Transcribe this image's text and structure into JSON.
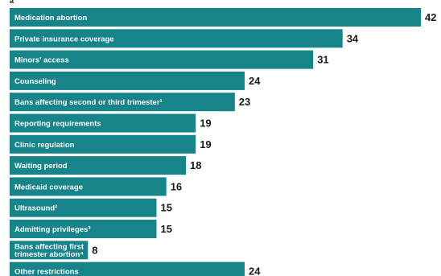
{
  "chart_data": {
    "type": "bar",
    "orientation": "horizontal",
    "title": "",
    "xlabel": "",
    "ylabel": "",
    "xlim": [
      0,
      42
    ],
    "grid": false,
    "legend": "none",
    "bar_color": "#17848a",
    "top_mark": "a",
    "categories": [
      "Medication abortion",
      "Private insurance coverage",
      "Minors' access",
      "Counseling",
      "Bans affecting second or third trimester¹",
      "Reporting requirements",
      "Clinic regulation",
      "Waiting period",
      "Medicaid coverage",
      "Ultrasound²",
      "Admitting privileges³",
      "Bans affecting first trimester abortion⁴",
      "Other restrictions"
    ],
    "label_lines": [
      [
        "Medication abortion"
      ],
      [
        "Private insurance coverage"
      ],
      [
        "Minors' access"
      ],
      [
        "Counseling"
      ],
      [
        "Bans affecting second or third trimester¹"
      ],
      [
        "Reporting requirements"
      ],
      [
        "Clinic regulation"
      ],
      [
        "Waiting period"
      ],
      [
        "Medicaid coverage"
      ],
      [
        "Ultrasound²"
      ],
      [
        "Admitting privileges³"
      ],
      [
        "Bans affecting first",
        "trimester abortion⁴"
      ],
      [
        "Other restrictions"
      ]
    ],
    "values": [
      42,
      34,
      31,
      24,
      23,
      19,
      19,
      18,
      16,
      15,
      15,
      8,
      24
    ]
  }
}
